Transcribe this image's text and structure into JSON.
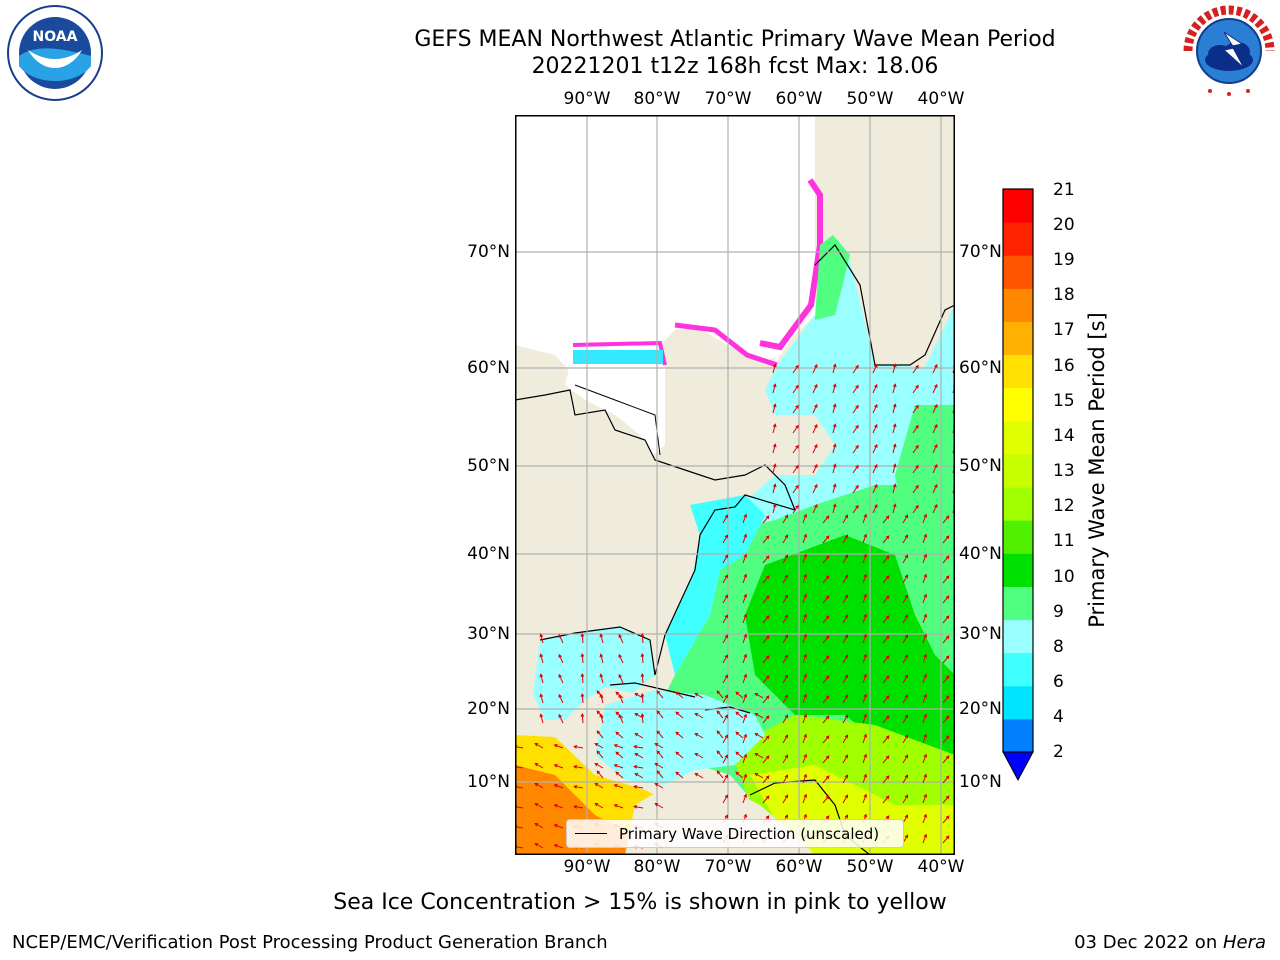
{
  "header": {
    "title_line1": "GEFS MEAN Northwest Atlantic Primary Wave Mean Period",
    "title_line2": "20221201 t12z 168h fcst   Max: 18.06"
  },
  "logos": {
    "noaa_text": "NOAA",
    "noaa_ring_text": "NATIONAL OCEANIC AND ATMOSPHERIC ADMINISTRATION · U.S. DEPARTMENT OF COMMERCE",
    "nws_ring_text": "NATIONAL WEATHER SERVICE"
  },
  "map": {
    "lon_ticks": [
      "90°W",
      "80°W",
      "70°W",
      "60°W",
      "50°W",
      "40°W"
    ],
    "lat_ticks": [
      "70°N",
      "60°N",
      "50°N",
      "40°N",
      "30°N",
      "20°N",
      "10°N"
    ],
    "legend_label": "Primary Wave Direction (unscaled)",
    "colors": {
      "land": "#efecdc",
      "ice_free_white": "#ffffff",
      "border": "#000000",
      "grid": "#b0b0b0",
      "arrow": "#e00000"
    }
  },
  "colorbar": {
    "label": "Primary Wave Mean Period [s]",
    "ticks": [
      "21",
      "20",
      "19",
      "18",
      "17",
      "16",
      "15",
      "14",
      "13",
      "12",
      "11",
      "10",
      "9",
      "8",
      "6",
      "4",
      "2"
    ],
    "colors": [
      "#0000ff",
      "#0080ff",
      "#00e5ff",
      "#40ffff",
      "#99ffff",
      "#50ff80",
      "#00e000",
      "#50f000",
      "#a0ff00",
      "#c8ff00",
      "#e0ff00",
      "#ffff00",
      "#ffe000",
      "#ffb000",
      "#ff8800",
      "#ff5500",
      "#ff2200",
      "#ff0000"
    ]
  },
  "footer": {
    "note": "Sea Ice Concentration > 15% is shown in pink to yellow",
    "credit_left": "NCEP/EMC/Verification Post Processing Product Generation Branch",
    "date_text": "03 Dec 2022 on ",
    "host": "Hera"
  }
}
